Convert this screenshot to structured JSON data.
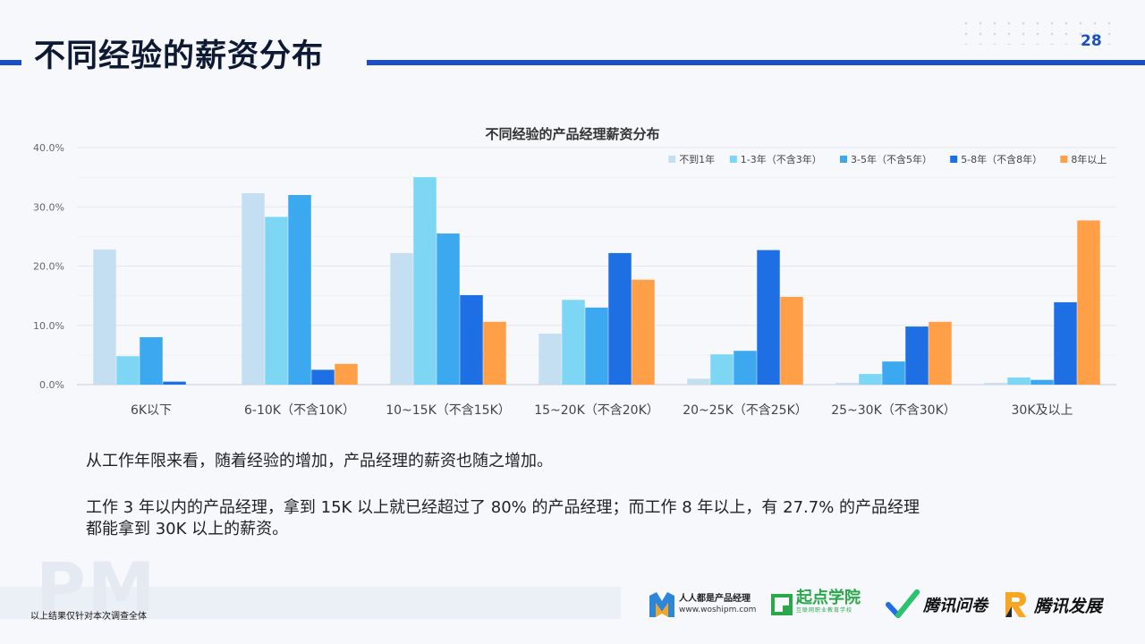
{
  "header": {
    "title": "不同经验的薪资分布",
    "page_number": "28"
  },
  "chart_data": {
    "type": "bar",
    "title": "不同经验的产品经理薪资分布",
    "xlabel": "",
    "ylabel": "",
    "ylim": [
      0,
      40
    ],
    "yticks": [
      "0.0%",
      "10.0%",
      "20.0%",
      "30.0%",
      "40.0%"
    ],
    "legend_position": "top-right",
    "grid": true,
    "categories": [
      "6K以下",
      "6-10K（不含10K）",
      "10~15K（不含15K）",
      "15~20K（不含20K）",
      "20~25K（不含25K）",
      "25~30K（不含30K）",
      "30K及以上"
    ],
    "series": [
      {
        "name": "不到1年",
        "color": "#c5dff2",
        "values": [
          22.8,
          32.3,
          22.2,
          8.6,
          1.0,
          0.3,
          0.3
        ]
      },
      {
        "name": "1-3年（不含3年）",
        "color": "#7dd6f4",
        "values": [
          4.8,
          28.3,
          35.0,
          14.3,
          5.1,
          1.8,
          1.2
        ]
      },
      {
        "name": "3-5年（不含5年）",
        "color": "#3ca8ef",
        "values": [
          8.0,
          32.0,
          25.5,
          13.0,
          5.7,
          3.9,
          0.8
        ]
      },
      {
        "name": "5-8年（不含8年）",
        "color": "#1e6fe3",
        "values": [
          0.5,
          2.5,
          15.1,
          22.2,
          22.7,
          9.8,
          13.9
        ]
      },
      {
        "name": "8年以上",
        "color": "#ff9f47",
        "values": [
          0.0,
          3.5,
          10.6,
          17.7,
          14.8,
          10.6,
          27.7
        ]
      }
    ]
  },
  "body": {
    "line1": "从工作年限来看，随着经验的增加，产品经理的薪资也随之增加。",
    "line2": "工作 3 年以内的产品经理，拿到 15K 以上就已经超过了 80% 的产品经理；而工作 8 年以上，有 27.7% 的产品经理",
    "line3": "都能拿到 30K 以上的薪资。"
  },
  "footer": {
    "watermark": "PM",
    "note": "以上结果仅针对本次调查全体",
    "logos": {
      "woshipm_name": "人人都是产品经理",
      "woshipm_url": "www.woshipm.com",
      "qidian_name": "起点学院",
      "qidian_sub": "互联网职业教育学校",
      "wenjuan_name": "腾讯问卷",
      "fazhan_name": "腾讯发展"
    }
  }
}
